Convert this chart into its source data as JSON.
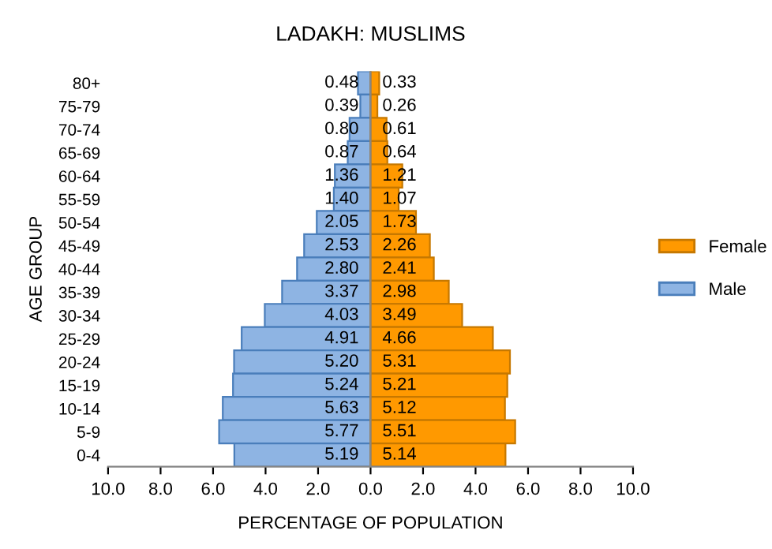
{
  "chart_data": {
    "type": "bar",
    "orientation": "horizontal",
    "title": "LADAKH: MUSLIMS",
    "xlabel": "PERCENTAGE OF POPULATION",
    "ylabel": "AGE GROUP",
    "categories": [
      "80+",
      "75-79",
      "70-74",
      "65-69",
      "60-64",
      "55-59",
      "50-54",
      "45-49",
      "40-44",
      "35-39",
      "30-34",
      "25-29",
      "20-24",
      "15-19",
      "10-14",
      "5-9",
      "0-4"
    ],
    "series": [
      {
        "name": "Male",
        "color": "#8eb4e3",
        "values": [
          0.48,
          0.39,
          0.8,
          0.87,
          1.36,
          1.4,
          2.05,
          2.53,
          2.8,
          3.37,
          4.03,
          4.91,
          5.2,
          5.24,
          5.63,
          5.77,
          5.19
        ],
        "base": [
          -0.48,
          -0.39,
          -0.8,
          -0.87,
          -1.36,
          -1.4,
          -2.05,
          -2.53,
          -2.8,
          -3.37,
          -4.03,
          -4.91,
          -5.2,
          -5.24,
          -5.63,
          -5.77,
          -5.19
        ],
        "value_labels": [
          "0.48",
          "0.39",
          "0.80",
          "0.87",
          "1.36",
          "1.40",
          "2.05",
          "2.53",
          "2.80",
          "3.37",
          "4.03",
          "4.91",
          "5.20",
          "5.24",
          "5.63",
          "5.77",
          "5.19"
        ]
      },
      {
        "name": "Female",
        "color": "#ff9900",
        "values": [
          0.33,
          0.26,
          0.61,
          0.64,
          1.21,
          1.07,
          1.73,
          2.26,
          2.41,
          2.98,
          3.49,
          4.66,
          5.31,
          5.21,
          5.12,
          5.51,
          5.14
        ],
        "value_labels": [
          "0.33",
          "0.26",
          "0.61",
          "0.64",
          "1.21",
          "1.07",
          "1.73",
          "2.26",
          "2.41",
          "2.98",
          "3.49",
          "4.66",
          "5.31",
          "5.21",
          "5.12",
          "5.51",
          "5.14"
        ]
      }
    ],
    "grid": false,
    "ref_lines": [
      {
        "axis": "x",
        "value": 0,
        "color": "#868686"
      }
    ],
    "xlim": [
      -10,
      10
    ],
    "xticks": [
      {
        "value": -10,
        "label": "10.0"
      },
      {
        "value": -8,
        "label": "8.0"
      },
      {
        "value": -6,
        "label": "6.0"
      },
      {
        "value": -4,
        "label": "4.0"
      },
      {
        "value": -2,
        "label": "2.0"
      },
      {
        "value": 0,
        "label": "0.0"
      },
      {
        "value": 2,
        "label": "2.0"
      },
      {
        "value": 4,
        "label": "4.0"
      },
      {
        "value": 6,
        "label": "6.0"
      },
      {
        "value": 8,
        "label": "8.0"
      },
      {
        "value": 10,
        "label": "10.0"
      }
    ],
    "legend": "right"
  }
}
